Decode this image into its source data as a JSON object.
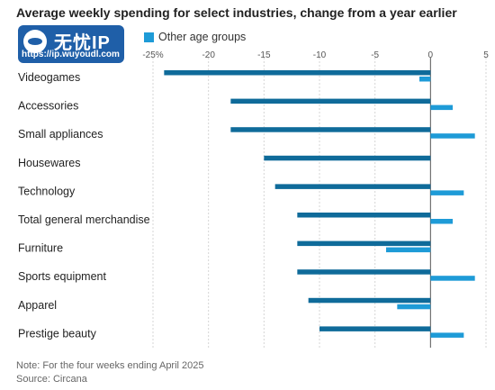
{
  "chart_data": {
    "type": "bar",
    "orientation": "horizontal",
    "title": "Average weekly spending for select industries, change from a year earlier",
    "categories": [
      "Videogames",
      "Accessories",
      "Small appliances",
      "Housewares",
      "Technology",
      "Total general merchandise",
      "Furniture",
      "Sports equipment",
      "Apparel",
      "Prestige beauty"
    ],
    "category_labels": [
      "Videogames",
      "Accessories",
      "Small appliances",
      "Housewares",
      "Technology",
      "Total general merchandise",
      "Furniture",
      "Sports equipment",
      "Apparel",
      "Prestige beauty"
    ],
    "series": [
      {
        "name": "",
        "color": "#0f6b9a",
        "values": [
          -24,
          -18,
          -18,
          -15,
          -14,
          -12,
          -12,
          -12,
          -11,
          -10
        ]
      },
      {
        "name": "Other age groups",
        "color": "#1e9bd7",
        "values": [
          -1,
          2,
          4,
          0,
          3,
          2,
          -4,
          4,
          -3,
          3
        ]
      }
    ],
    "xlim": [
      -25,
      5
    ],
    "ticks": [
      -25,
      -20,
      -15,
      -10,
      -5,
      0,
      5
    ],
    "tick_labels": [
      "-25%",
      "-20",
      "-15",
      "-10",
      "-5",
      "0",
      "5"
    ],
    "legend_position": "top-left",
    "grid": "vertical"
  },
  "watermark": {
    "title": "无忧IP",
    "url": "https://ip.wuyoudl.com"
  },
  "note": "Note: For the four weeks ending April 2025",
  "source": "Source: Circana"
}
